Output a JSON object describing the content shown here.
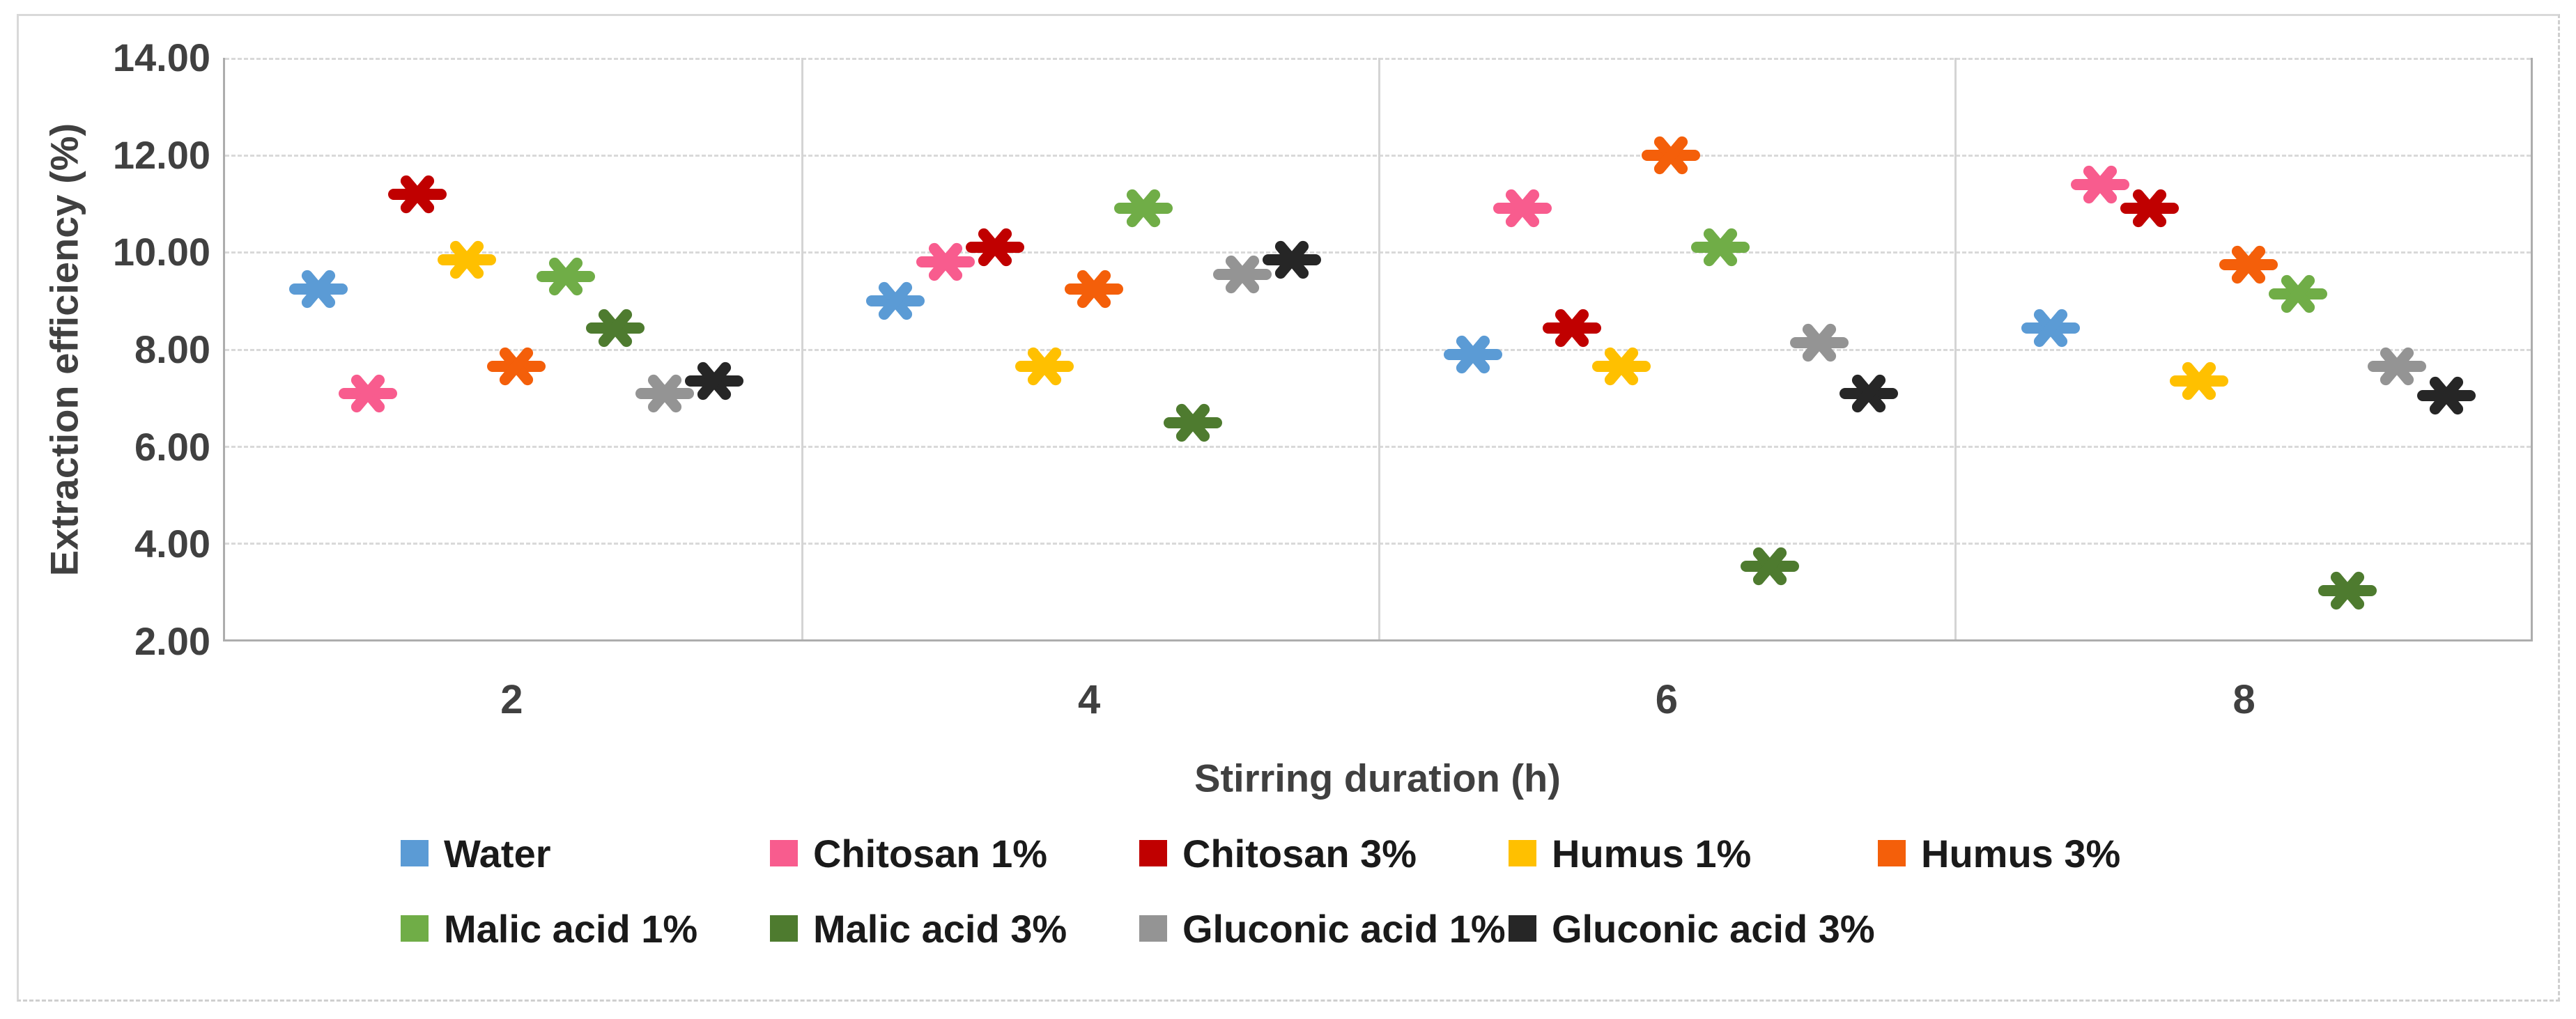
{
  "chart": {
    "y_axis_title": "Extraction efficiency (%)",
    "x_axis_title": "Stirring duration (h)"
  },
  "chart_data": {
    "type": "scatter",
    "marker": "asterisk",
    "title": "",
    "xlabel": "Stirring duration (h)",
    "ylabel": "Extraction efficiency (%)",
    "categories": [
      "2",
      "4",
      "6",
      "8"
    ],
    "y_tick_labels": [
      "14.00",
      "12.00",
      "10.00",
      "8.00",
      "6.00",
      "4.00",
      "2.00"
    ],
    "y_tick_values": [
      14,
      12,
      10,
      8,
      6,
      4,
      2
    ],
    "ylim": [
      2,
      14
    ],
    "grid": {
      "horizontal": "dashed",
      "vertical_category_separators": true
    },
    "legend_position": "bottom",
    "legend_rows": [
      5,
      4
    ],
    "series": [
      {
        "name": "Water",
        "color": "#5B9BD5",
        "values": [
          9.25,
          9.0,
          7.9,
          8.45
        ]
      },
      {
        "name": "Chitosan 1%",
        "color": "#F85C8E",
        "values": [
          7.1,
          9.8,
          10.9,
          11.4
        ]
      },
      {
        "name": "Chitosan 3%",
        "color": "#C00000",
        "values": [
          11.2,
          10.1,
          8.45,
          10.9
        ]
      },
      {
        "name": "Humus 1%",
        "color": "#FFC000",
        "values": [
          9.85,
          7.65,
          7.65,
          7.35
        ]
      },
      {
        "name": "Humus 3%",
        "color": "#F45F0A",
        "values": [
          7.65,
          9.25,
          12.0,
          9.75
        ]
      },
      {
        "name": "Malic acid 1%",
        "color": "#70AD47",
        "values": [
          9.5,
          10.9,
          10.1,
          9.15
        ]
      },
      {
        "name": "Malic acid 3%",
        "color": "#4E7B2F",
        "values": [
          8.45,
          6.5,
          3.55,
          3.05
        ]
      },
      {
        "name": "Gluconic acid 1%",
        "color": "#949494",
        "values": [
          7.1,
          9.55,
          8.15,
          7.65
        ]
      },
      {
        "name": "Gluconic acid 3%",
        "color": "#262626",
        "values": [
          7.35,
          9.85,
          7.1,
          7.05
        ]
      }
    ]
  },
  "colors": {
    "gridline": "#D9D9D9",
    "plot_border": "#ADADAD",
    "frame_border": "#D9D9D9",
    "tick_text": "#404040",
    "legend_text": "#1A1A1A"
  }
}
